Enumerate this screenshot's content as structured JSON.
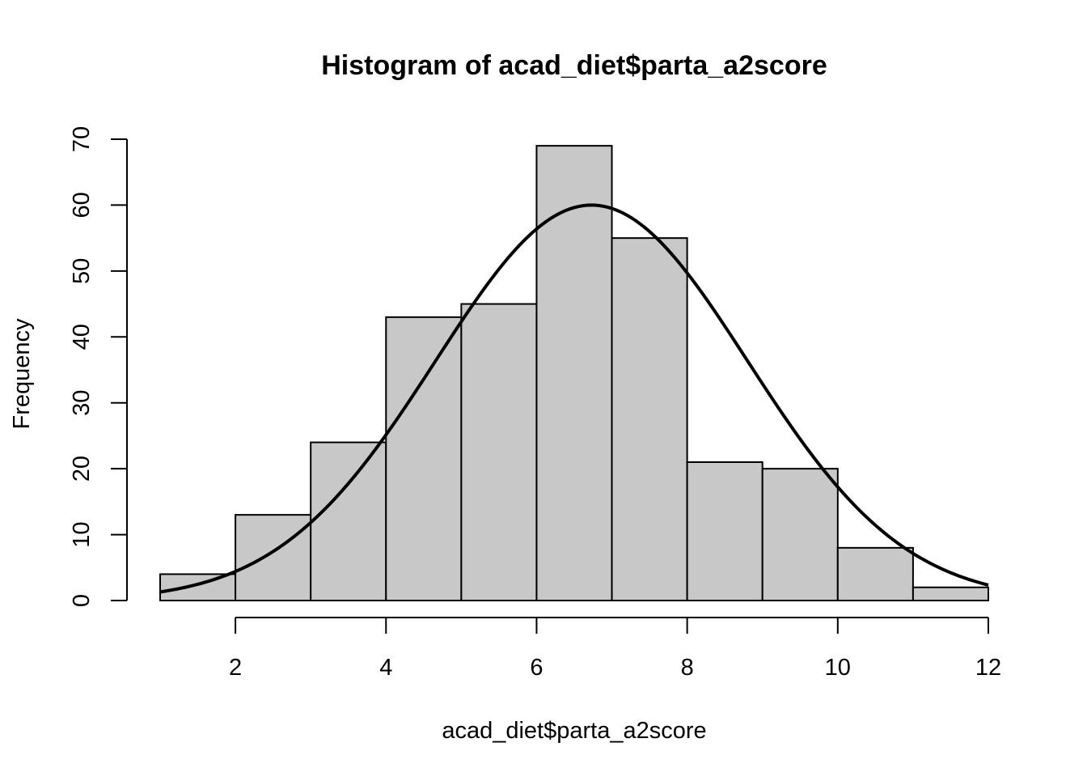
{
  "chart_data": {
    "type": "bar",
    "title": "Histogram of acad_diet$parta_a2score",
    "xlabel": "acad_diet$parta_a2score",
    "ylabel": "Frequency",
    "bins": [
      {
        "from": 1,
        "to": 2,
        "count": 4
      },
      {
        "from": 2,
        "to": 3,
        "count": 13
      },
      {
        "from": 3,
        "to": 4,
        "count": 24
      },
      {
        "from": 4,
        "to": 5,
        "count": 43
      },
      {
        "from": 5,
        "to": 6,
        "count": 45
      },
      {
        "from": 6,
        "to": 7,
        "count": 69
      },
      {
        "from": 7,
        "to": 8,
        "count": 55
      },
      {
        "from": 8,
        "to": 9,
        "count": 21
      },
      {
        "from": 9,
        "to": 10,
        "count": 20
      },
      {
        "from": 10,
        "to": 11,
        "count": 8
      },
      {
        "from": 11,
        "to": 12,
        "count": 2
      }
    ],
    "x_ticks": [
      "2",
      "4",
      "6",
      "8",
      "10",
      "12"
    ],
    "y_ticks": [
      "0",
      "10",
      "20",
      "30",
      "40",
      "50",
      "60",
      "70"
    ],
    "xlim": [
      1,
      12
    ],
    "ylim": [
      0,
      70
    ],
    "overlay_curve": {
      "type": "normal-density",
      "mean": 6.73,
      "sd": 2.07,
      "peak_frequency": 60,
      "x_range": [
        1,
        12
      ]
    },
    "bar_fill": "#c8c8c8",
    "line_color": "#000000",
    "grid": false,
    "legend": "none"
  }
}
